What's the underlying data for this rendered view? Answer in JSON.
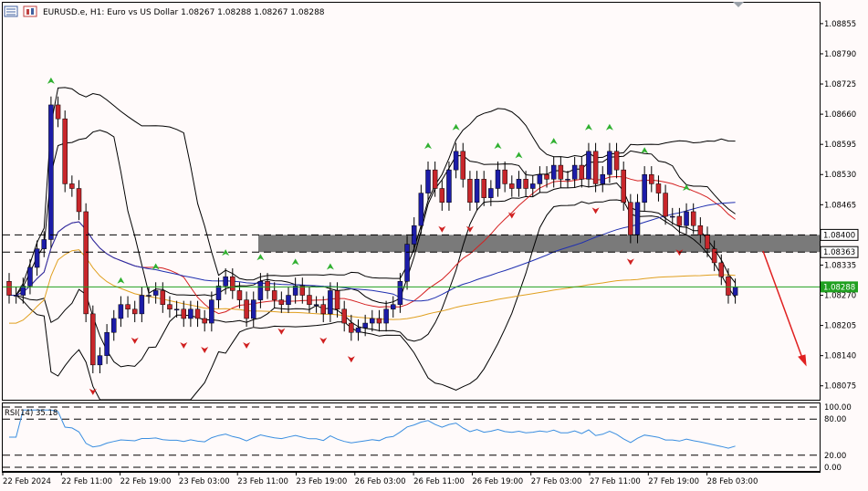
{
  "header": {
    "symbol": "EURUSD.e",
    "timeframe": "H1",
    "description": "Euro vs US Dollar",
    "ohlc": "1.08267 1.08288 1.08267 1.08288",
    "title_text": "EURUSD.e, H1: Euro vs US Dollar  1.08267 1.08288 1.08267 1.08288"
  },
  "price_axis": {
    "ticks": [
      "1.08855",
      "1.08790",
      "1.08725",
      "1.08660",
      "1.08595",
      "1.08530",
      "1.08465",
      "1.08335",
      "1.08270",
      "1.08205",
      "1.08140",
      "1.08075"
    ]
  },
  "price_labels": {
    "level_upper": "1.08400",
    "level_lower": "1.08363",
    "current": "1.08288"
  },
  "rsi": {
    "label": "RSI(14) 35.18",
    "ticks": [
      "100.00",
      "80.00",
      "20.00",
      "0.00"
    ]
  },
  "time_axis": {
    "labels": [
      "22 Feb 2024",
      "22 Feb 11:00",
      "22 Feb 19:00",
      "23 Feb 03:00",
      "23 Feb 11:00",
      "23 Feb 19:00",
      "26 Feb 03:00",
      "26 Feb 11:00",
      "26 Feb 19:00",
      "27 Feb 03:00",
      "27 Feb 11:00",
      "27 Feb 19:00",
      "28 Feb 03:00"
    ]
  },
  "colors": {
    "bull": "#1c1ca8",
    "bear": "#c8262b",
    "bollinger": "#000000",
    "ma_red": "#d42020",
    "ma_blue": "#2030b0",
    "ma_orange": "#e0a020",
    "current_line": "#20a020",
    "sr_zone": "#7a7a7a",
    "rsi_line": "#3a8ee0",
    "arrow_up": "#30b030",
    "arrow_down": "#d02020"
  },
  "chart_data": {
    "type": "candlestick",
    "ylim": [
      1.08045,
      1.089
    ],
    "open": [
      1.083,
      1.0827,
      1.0827,
      1.0829,
      1.0833,
      1.0837,
      1.0839,
      1.0868,
      1.0865,
      1.0851,
      1.085,
      1.0845,
      1.0823,
      1.0812,
      1.0814,
      1.0819,
      1.0822,
      1.0825,
      1.0824,
      1.0823,
      1.0827,
      1.0827,
      1.0828,
      1.0825,
      1.0824,
      1.0824,
      1.0822,
      1.0824,
      1.0822,
      1.0821,
      1.0826,
      1.0829,
      1.0831,
      1.0828,
      1.0826,
      1.0822,
      1.0826,
      1.083,
      1.0828,
      1.0826,
      1.0825,
      1.0827,
      1.0829,
      1.0827,
      1.0825,
      1.0825,
      1.0823,
      1.0828,
      1.0824,
      1.0821,
      1.0819,
      1.082,
      1.0821,
      1.0822,
      1.0821,
      1.0824,
      1.0825,
      1.083,
      1.0838,
      1.0842,
      1.0849,
      1.0854,
      1.085,
      1.0847,
      1.0854,
      1.0858,
      1.0852,
      1.0847,
      1.0852,
      1.0848,
      1.085,
      1.0854,
      1.0851,
      1.085,
      1.0852,
      1.085,
      1.0851,
      1.0853,
      1.0852,
      1.0855,
      1.0852,
      1.0852,
      1.0855,
      1.0852,
      1.0858,
      1.0851,
      1.0853,
      1.0858,
      1.0854,
      1.0847,
      1.084,
      1.0847,
      1.0853,
      1.0851,
      1.0849,
      1.0844,
      1.0844,
      1.0842,
      1.0845,
      1.0842,
      1.084,
      1.0837,
      1.0834,
      1.0831,
      1.0827
    ],
    "close": [
      1.0827,
      1.0827,
      1.0829,
      1.0833,
      1.0837,
      1.0839,
      1.0868,
      1.0865,
      1.0851,
      1.085,
      1.0845,
      1.0823,
      1.0812,
      1.0814,
      1.0819,
      1.0822,
      1.0825,
      1.0824,
      1.0823,
      1.0827,
      1.0827,
      1.0828,
      1.0825,
      1.0824,
      1.0824,
      1.0822,
      1.0824,
      1.0822,
      1.0821,
      1.0826,
      1.0829,
      1.0831,
      1.0828,
      1.0826,
      1.0822,
      1.0826,
      1.083,
      1.0828,
      1.0826,
      1.0825,
      1.0827,
      1.0829,
      1.0827,
      1.0825,
      1.0825,
      1.0823,
      1.0828,
      1.0824,
      1.0821,
      1.0819,
      1.082,
      1.0821,
      1.0822,
      1.0821,
      1.0824,
      1.0825,
      1.083,
      1.0838,
      1.0842,
      1.0849,
      1.0854,
      1.085,
      1.0847,
      1.0854,
      1.0858,
      1.0852,
      1.0847,
      1.0852,
      1.0848,
      1.085,
      1.0854,
      1.0851,
      1.085,
      1.0852,
      1.085,
      1.0851,
      1.0853,
      1.0852,
      1.0855,
      1.0852,
      1.0852,
      1.0855,
      1.0852,
      1.0858,
      1.0851,
      1.0853,
      1.0858,
      1.0854,
      1.0847,
      1.084,
      1.0847,
      1.0853,
      1.0851,
      1.0849,
      1.0844,
      1.0844,
      1.0842,
      1.0845,
      1.0842,
      1.084,
      1.0837,
      1.0834,
      1.0831,
      1.0827,
      1.08288
    ],
    "levels": [
      1.084,
      1.08363,
      1.08288
    ],
    "rsi_ylim": [
      0,
      100
    ],
    "rsi_levels": [
      100,
      80,
      20,
      0
    ],
    "rsi_last": 35.18
  }
}
